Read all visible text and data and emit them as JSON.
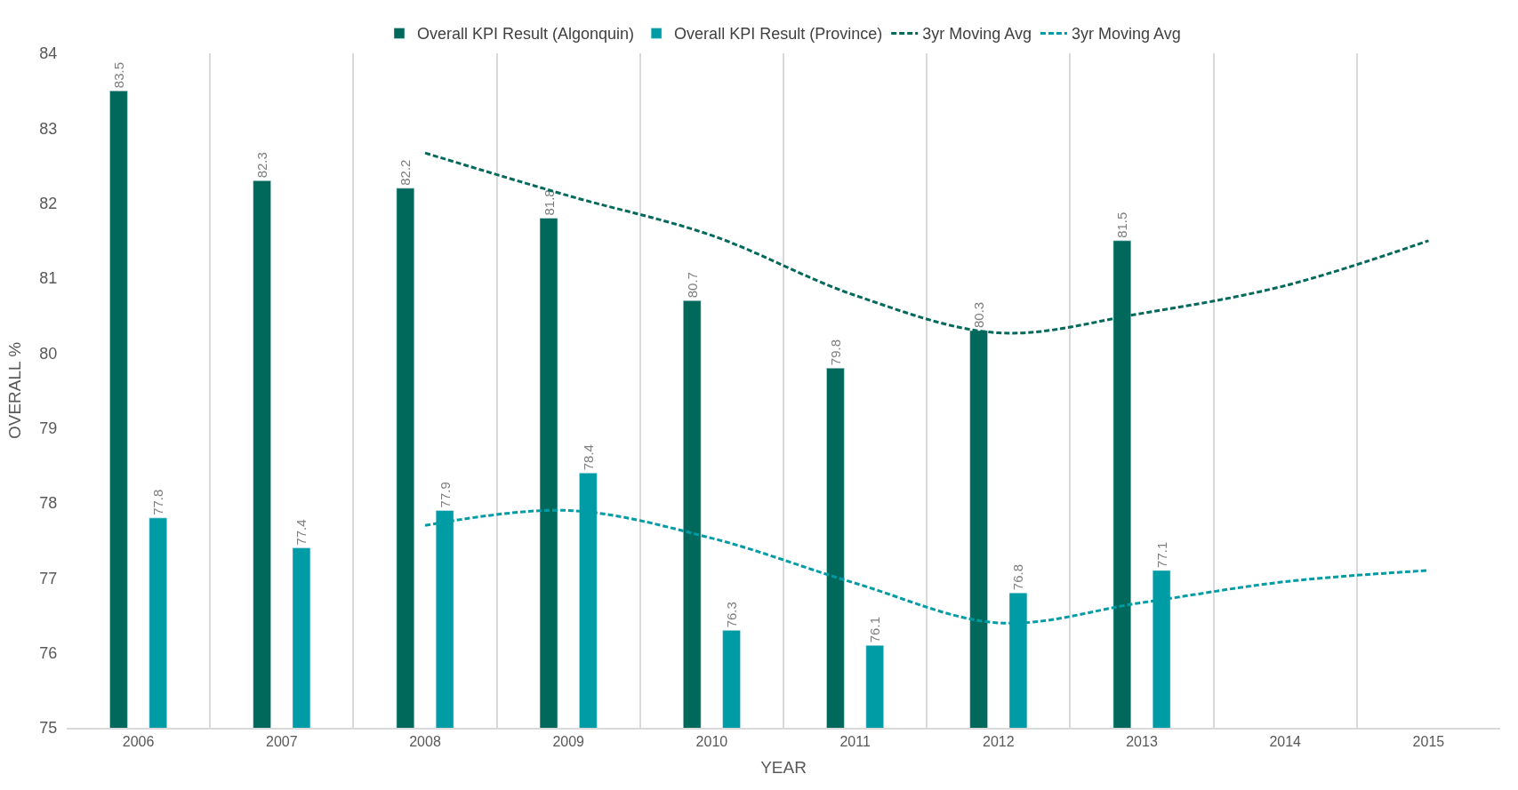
{
  "chart_data": {
    "type": "bar",
    "xlabel": "YEAR",
    "ylabel": "OVERALL %",
    "categories": [
      "2006",
      "2007",
      "2008",
      "2009",
      "2010",
      "2011",
      "2012",
      "2013",
      "2014",
      "2015"
    ],
    "series": [
      {
        "name": "Overall KPI Result (Algonquin)",
        "color": "#00695c",
        "values": [
          83.5,
          82.3,
          82.2,
          81.8,
          80.7,
          79.8,
          80.3,
          81.5,
          null,
          null
        ],
        "value_labels": [
          "83.5",
          "82.3",
          "82.2",
          "81.8",
          "80.7",
          "79.8",
          "80.3",
          "81.5",
          null,
          null
        ]
      },
      {
        "name": "Overall KPI Result (Province)",
        "color": "#009ca6",
        "values": [
          77.8,
          77.4,
          77.9,
          78.4,
          76.3,
          76.1,
          76.8,
          77.1,
          null,
          null
        ],
        "value_labels": [
          "77.8",
          "77.4",
          "77.9",
          "78.4",
          "76.3",
          "76.1",
          "76.8",
          "77.1",
          null,
          null
        ]
      },
      {
        "name": "3yr Moving Avg",
        "type": "line",
        "line_style": "dashed",
        "color": "#00695c",
        "values": [
          null,
          null,
          82.67,
          82.1,
          81.57,
          80.77,
          80.27,
          80.53,
          80.9,
          81.5
        ]
      },
      {
        "name": "3yr Moving Avg",
        "type": "line",
        "line_style": "dashed",
        "color": "#009ca6",
        "values": [
          null,
          null,
          77.7,
          77.9,
          77.53,
          76.93,
          76.4,
          76.67,
          76.95,
          77.1
        ]
      }
    ],
    "ylim": [
      75,
      84
    ],
    "yticks": [
      75,
      76,
      77,
      78,
      79,
      80,
      81,
      82,
      83,
      84
    ],
    "grid": "x",
    "legend": "top",
    "marker": "none"
  }
}
